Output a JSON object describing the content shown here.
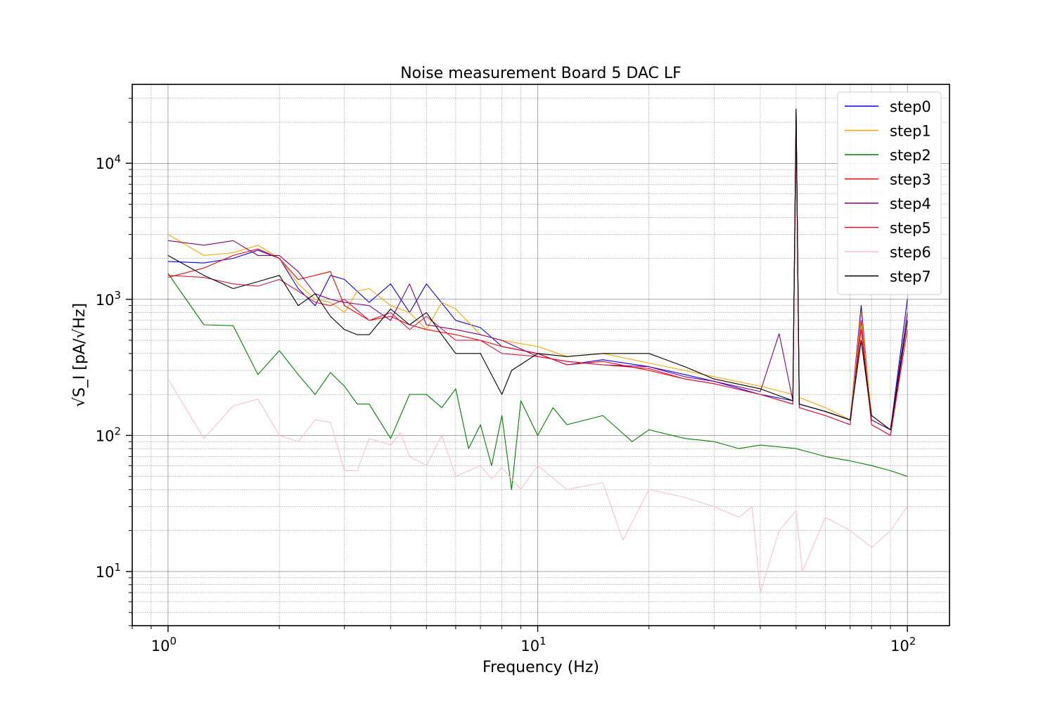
{
  "chart_data": {
    "type": "line",
    "title": "Noise measurement Board 5 DAC LF",
    "xlabel": "Frequency (Hz)",
    "ylabel": "√S_I [pA/√Hz]",
    "x_scale": "log",
    "y_scale": "log",
    "xlim": [
      0.8,
      130
    ],
    "ylim": [
      4,
      38000
    ],
    "x_ticks": [
      {
        "value": 1,
        "base": "10",
        "exp": "0"
      },
      {
        "value": 10,
        "base": "10",
        "exp": "1"
      },
      {
        "value": 100,
        "base": "10",
        "exp": "2"
      }
    ],
    "y_ticks": [
      {
        "value": 10,
        "base": "10",
        "exp": "1"
      },
      {
        "value": 100,
        "base": "10",
        "exp": "2"
      },
      {
        "value": 1000,
        "base": "10",
        "exp": "3"
      },
      {
        "value": 10000,
        "base": "10",
        "exp": "4"
      }
    ],
    "grid": true,
    "legend_position": "top-right",
    "series": [
      {
        "name": "step0",
        "color": "#0000ff",
        "x": [
          1,
          1.25,
          1.5,
          1.75,
          2,
          2.25,
          2.5,
          2.75,
          3,
          3.5,
          4,
          4.5,
          5,
          6,
          7,
          8,
          10,
          12,
          15,
          20,
          25,
          30,
          40,
          49,
          50,
          51,
          60,
          70,
          75,
          80,
          90,
          100
        ],
        "y": [
          1900,
          1850,
          2000,
          2300,
          2000,
          1200,
          900,
          1500,
          1400,
          950,
          1300,
          800,
          1300,
          700,
          620,
          450,
          400,
          330,
          360,
          320,
          280,
          250,
          200,
          180,
          25000,
          170,
          150,
          130,
          900,
          130,
          110,
          1000
        ]
      },
      {
        "name": "step1",
        "color": "#ffa500",
        "x": [
          1,
          1.25,
          1.5,
          1.75,
          2,
          2.25,
          2.5,
          2.75,
          3,
          3.25,
          3.5,
          4,
          4.5,
          5,
          5.5,
          6,
          7,
          8,
          10,
          12,
          15,
          20,
          25,
          30,
          40,
          49,
          50,
          51,
          60,
          70,
          75,
          80,
          90,
          100
        ],
        "y": [
          3000,
          2100,
          2200,
          2500,
          2000,
          1300,
          1000,
          950,
          800,
          1150,
          1200,
          900,
          800,
          600,
          950,
          850,
          550,
          500,
          450,
          380,
          400,
          340,
          300,
          270,
          230,
          200,
          23000,
          190,
          160,
          130,
          800,
          140,
          110,
          800
        ]
      },
      {
        "name": "step2",
        "color": "#008000",
        "x": [
          1,
          1.25,
          1.5,
          1.75,
          2,
          2.25,
          2.5,
          2.75,
          3,
          3.25,
          3.5,
          4,
          4.5,
          5,
          5.5,
          6,
          6.5,
          7,
          7.5,
          8,
          8.5,
          9,
          10,
          11,
          12,
          15,
          18,
          20,
          25,
          30,
          35,
          40,
          50,
          60,
          70,
          80,
          90,
          100
        ],
        "y": [
          1550,
          650,
          640,
          280,
          420,
          280,
          200,
          290,
          230,
          170,
          170,
          95,
          200,
          200,
          160,
          220,
          80,
          120,
          60,
          140,
          40,
          180,
          100,
          160,
          120,
          140,
          90,
          110,
          95,
          90,
          80,
          85,
          80,
          70,
          65,
          60,
          55,
          50
        ]
      },
      {
        "name": "step3",
        "color": "#ff0000",
        "x": [
          1,
          1.25,
          1.5,
          1.75,
          2,
          2.25,
          2.5,
          2.75,
          3,
          3.5,
          4,
          4.5,
          5,
          6,
          7,
          8,
          10,
          12,
          15,
          20,
          25,
          30,
          40,
          49,
          50,
          51,
          60,
          70,
          75,
          80,
          90,
          100
        ],
        "y": [
          1450,
          1700,
          2100,
          2350,
          2000,
          1400,
          1500,
          1600,
          900,
          700,
          750,
          650,
          600,
          550,
          500,
          450,
          400,
          330,
          350,
          300,
          260,
          240,
          200,
          170,
          24000,
          160,
          140,
          120,
          700,
          120,
          100,
          700
        ]
      },
      {
        "name": "step4",
        "color": "#800080",
        "x": [
          1,
          1.25,
          1.5,
          1.75,
          2,
          2.25,
          2.5,
          2.75,
          3,
          3.5,
          4,
          4.5,
          5,
          6,
          7,
          8,
          10,
          12,
          15,
          20,
          25,
          30,
          40,
          45,
          49,
          50,
          51,
          60,
          70,
          75,
          80,
          90,
          100
        ],
        "y": [
          2700,
          2500,
          2700,
          2100,
          2100,
          1600,
          1100,
          1000,
          950,
          900,
          700,
          1300,
          650,
          600,
          550,
          500,
          380,
          350,
          330,
          320,
          270,
          250,
          210,
          560,
          180,
          24000,
          170,
          150,
          130,
          500,
          130,
          110,
          800
        ]
      },
      {
        "name": "step5",
        "color": "#dc143c",
        "x": [
          1,
          1.25,
          1.5,
          1.75,
          2,
          2.25,
          2.5,
          2.75,
          3,
          3.5,
          4,
          4.5,
          5,
          6,
          7,
          8,
          10,
          12,
          15,
          20,
          25,
          30,
          40,
          49,
          50,
          51,
          60,
          70,
          75,
          80,
          90,
          100
        ],
        "y": [
          1500,
          1450,
          1300,
          1250,
          1400,
          1150,
          950,
          900,
          1000,
          700,
          800,
          600,
          750,
          500,
          500,
          400,
          380,
          350,
          330,
          310,
          260,
          240,
          200,
          170,
          22000,
          160,
          140,
          120,
          600,
          120,
          100,
          600
        ]
      },
      {
        "name": "step6",
        "color": "#ffc0cb",
        "x": [
          1,
          1.25,
          1.5,
          1.75,
          2,
          2.25,
          2.5,
          2.75,
          3,
          3.25,
          3.5,
          4,
          4.25,
          4.5,
          5,
          5.5,
          6,
          7,
          7.5,
          8,
          9,
          10,
          12,
          15,
          17,
          20,
          25,
          30,
          35,
          38,
          40,
          45,
          50,
          52,
          60,
          70,
          80,
          90,
          100
        ],
        "y": [
          260,
          95,
          165,
          185,
          100,
          90,
          130,
          125,
          55,
          55,
          95,
          85,
          105,
          70,
          60,
          100,
          50,
          60,
          48,
          58,
          40,
          60,
          40,
          45,
          17,
          40,
          35,
          30,
          25,
          30,
          7,
          20,
          28,
          10,
          25,
          20,
          15,
          20,
          30
        ]
      },
      {
        "name": "step7",
        "color": "#000000",
        "x": [
          1,
          1.25,
          1.5,
          1.75,
          2,
          2.25,
          2.5,
          2.75,
          3,
          3.25,
          3.5,
          4,
          4.5,
          5,
          5.5,
          6,
          7,
          8,
          8.5,
          10,
          12,
          15,
          20,
          25,
          30,
          40,
          49,
          50,
          51,
          60,
          70,
          75,
          80,
          90,
          100
        ],
        "y": [
          2100,
          1500,
          1200,
          1350,
          1500,
          900,
          1100,
          750,
          600,
          550,
          550,
          850,
          650,
          800,
          550,
          400,
          400,
          200,
          300,
          400,
          380,
          400,
          400,
          320,
          260,
          220,
          180,
          25000,
          170,
          150,
          130,
          500,
          140,
          110,
          700
        ]
      }
    ]
  }
}
